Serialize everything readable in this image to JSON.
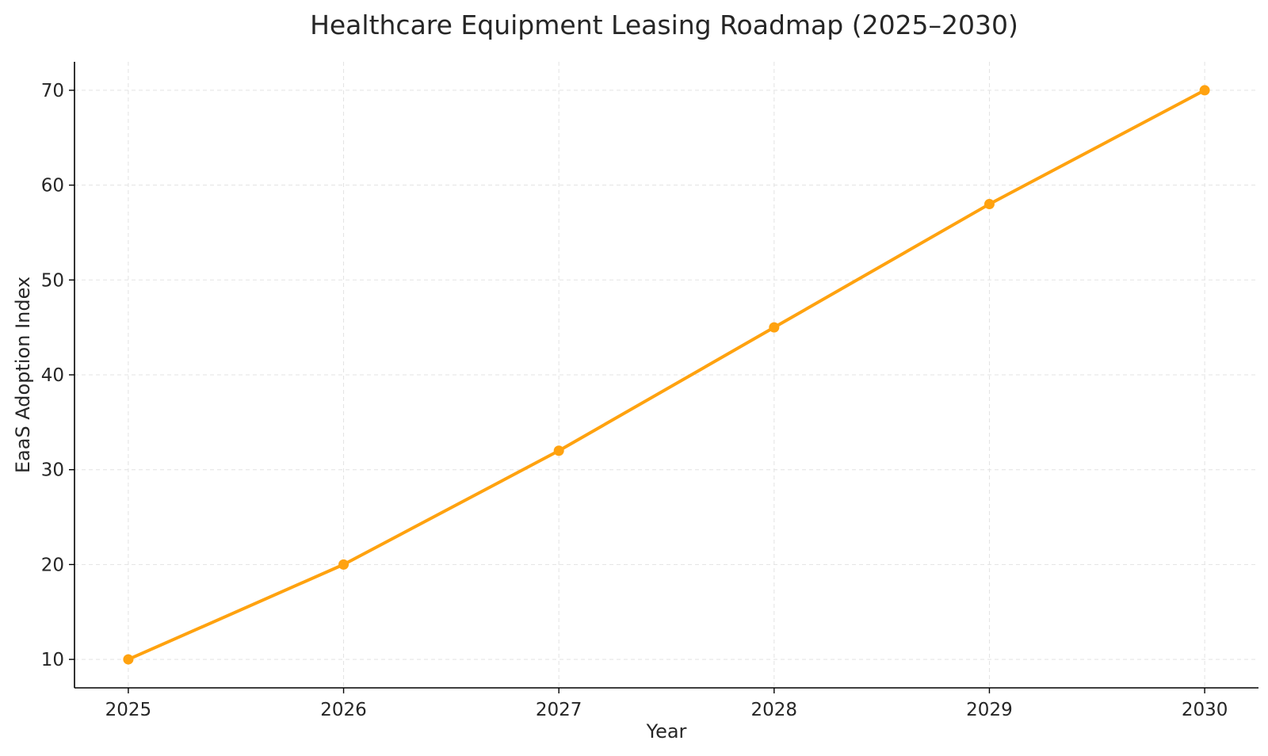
{
  "chart_data": {
    "type": "line",
    "title": "Healthcare Equipment Leasing Roadmap (2025–2030)",
    "xlabel": "Year",
    "ylabel": "EaaS Adoption Index",
    "x": [
      2025,
      2026,
      2027,
      2028,
      2029,
      2030
    ],
    "x_tick_labels": [
      "2025",
      "2026",
      "2027",
      "2028",
      "2029",
      "2030"
    ],
    "y_ticks": [
      10,
      20,
      30,
      40,
      50,
      60,
      70
    ],
    "xlim": [
      2024.75,
      2030.25
    ],
    "ylim": [
      7,
      73
    ],
    "grid": true,
    "legend": "none",
    "series": [
      {
        "values": [
          10,
          20,
          32,
          45,
          58,
          70
        ],
        "color": "#ffa20f",
        "marker": "circle"
      }
    ]
  }
}
